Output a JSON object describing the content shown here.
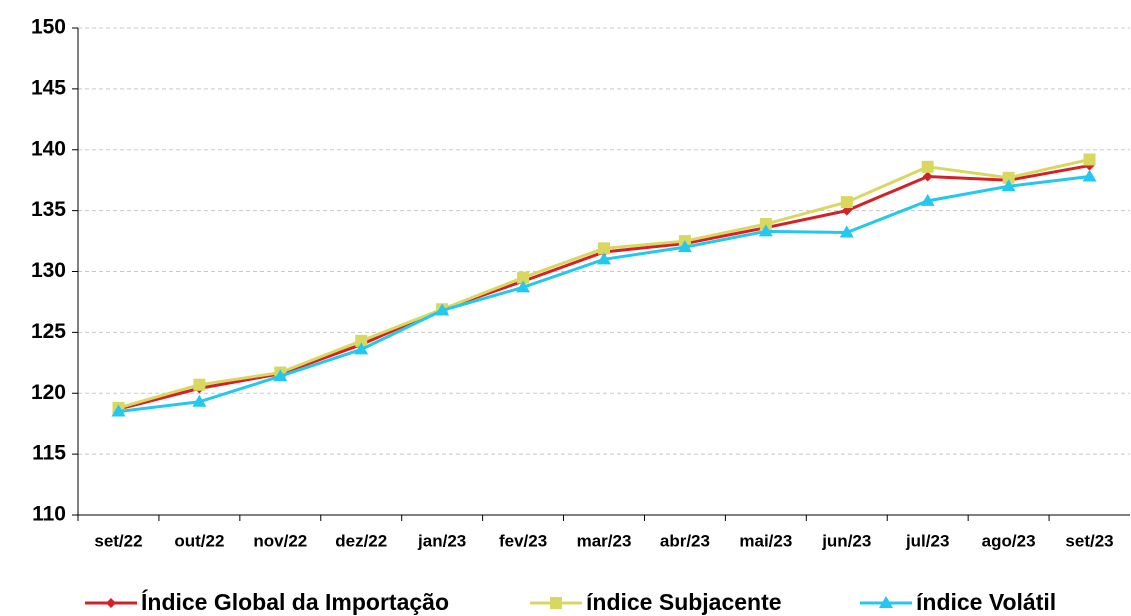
{
  "chart_data": {
    "type": "line",
    "categories": [
      "set/22",
      "out/22",
      "nov/22",
      "dez/22",
      "jan/23",
      "fev/23",
      "mar/23",
      "abr/23",
      "mai/23",
      "jun/23",
      "jul/23",
      "ago/23",
      "set/23"
    ],
    "series": [
      {
        "name": "Índice Global da Importação",
        "color": "#d42027",
        "marker": "diamond",
        "values": [
          118.7,
          120.4,
          121.6,
          124.0,
          126.9,
          129.2,
          131.6,
          132.3,
          133.6,
          135.0,
          137.8,
          137.5,
          138.7
        ]
      },
      {
        "name": "índice Subjacente",
        "color": "#d8d860",
        "marker": "square",
        "values": [
          118.8,
          120.7,
          121.7,
          124.3,
          126.9,
          129.5,
          131.9,
          132.5,
          133.9,
          135.7,
          138.6,
          137.7,
          139.2
        ]
      },
      {
        "name": "índice Volátil",
        "color": "#22c8ee",
        "marker": "triangle",
        "values": [
          118.5,
          119.3,
          121.4,
          123.6,
          126.8,
          128.7,
          131.0,
          132.0,
          133.3,
          133.2,
          135.8,
          137.0,
          137.8
        ]
      }
    ],
    "ylim": [
      110,
      150
    ],
    "yticks": [
      110,
      115,
      120,
      125,
      130,
      135,
      140,
      145,
      150
    ],
    "grid": true,
    "legend": "bottom"
  }
}
